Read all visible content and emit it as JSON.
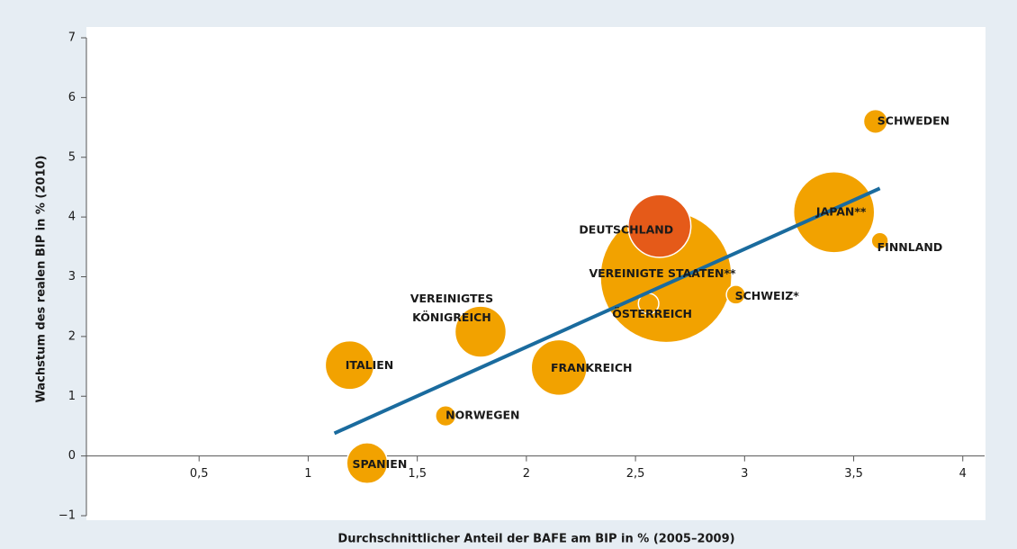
{
  "chart_data": {
    "type": "scatter",
    "xlabel": "Durchschnittlicher Anteil der BAFE am BIP in % (2005–2009)",
    "ylabel": "Wachstum des realen BIP in % (2010)",
    "xlim": [
      0,
      4.1
    ],
    "ylim": [
      -1,
      7
    ],
    "xticks": [
      {
        "value": 0.5,
        "label": "0,5"
      },
      1,
      {
        "value": 1.5,
        "label": "1,5"
      },
      2,
      {
        "value": 2.5,
        "label": "2,5"
      },
      3,
      {
        "value": 3.5,
        "label": "3,5"
      },
      4
    ],
    "yticks": [
      {
        "value": -1,
        "label": "−1"
      },
      0,
      1,
      2,
      3,
      4,
      5,
      6,
      7
    ],
    "points": [
      {
        "label": [
          "VEREINIGTE STAATEN**"
        ],
        "x": 2.64,
        "y": 3.0,
        "size": 14.5,
        "color": "#f2a200"
      },
      {
        "label": [
          "JAPAN**"
        ],
        "x": 3.41,
        "y": 4.08,
        "size": 5.5,
        "color": "#f2a200"
      },
      {
        "label": [
          "DEUTSCHLAND"
        ],
        "x": 2.61,
        "y": 3.85,
        "size": 3.3,
        "color": "#e55a19"
      },
      {
        "label": [
          "FRANKREICH"
        ],
        "x": 2.15,
        "y": 1.48,
        "size": 2.6,
        "color": "#f2a200"
      },
      {
        "label": [
          "VEREINIGTES",
          "KÖNIGREICH"
        ],
        "x": 1.79,
        "y": 2.08,
        "size": 2.2,
        "color": "#f2a200"
      },
      {
        "label": [
          "ITALIEN"
        ],
        "x": 1.19,
        "y": 1.52,
        "size": 2.0,
        "color": "#f2a200"
      },
      {
        "label": [
          "SPANIEN"
        ],
        "x": 1.27,
        "y": -0.12,
        "size": 1.4,
        "color": "#f2a200"
      },
      {
        "label": [
          "SCHWEIZ*"
        ],
        "x": 2.96,
        "y": 2.7,
        "size": 0.3,
        "color": "#f2a200"
      },
      {
        "label": [
          "SCHWEDEN"
        ],
        "x": 3.6,
        "y": 5.6,
        "size": 0.48,
        "color": "#f2a200"
      },
      {
        "label": [
          "NORWEGEN"
        ],
        "x": 1.63,
        "y": 0.67,
        "size": 0.35,
        "color": "#f2a200"
      },
      {
        "label": [
          "ÖSTERREICH"
        ],
        "x": 2.56,
        "y": 2.55,
        "size": 0.35,
        "color": "#f2a200"
      },
      {
        "label": [
          "FINNLAND"
        ],
        "x": 3.62,
        "y": 3.6,
        "size": 0.24,
        "color": "#f2a200"
      }
    ],
    "trend": {
      "x": [
        1.12,
        3.62
      ],
      "y": [
        0.38,
        4.48
      ],
      "color": "#1a6b9e"
    }
  }
}
